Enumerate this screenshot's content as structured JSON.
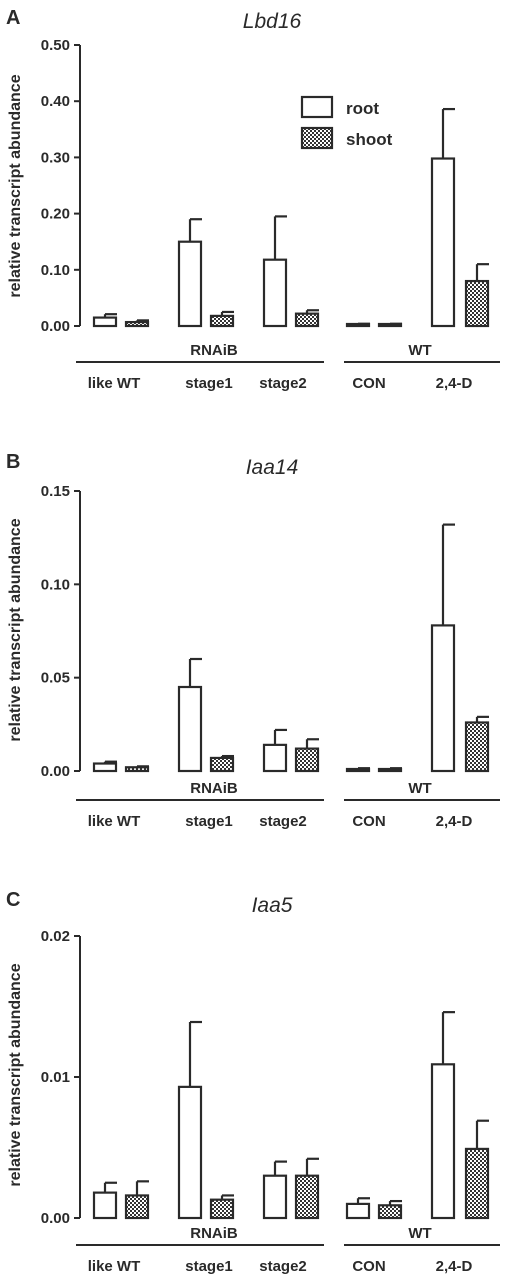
{
  "colors": {
    "root_fill": "#ffffff",
    "shoot_fill": "checkered",
    "ink": "#2a2a2a"
  },
  "chart_data": [
    {
      "panel_label": "A",
      "type": "bar",
      "title": "Lbd16",
      "ylabel": "relative transcript abundance",
      "ylim": [
        0,
        0.5
      ],
      "yticks": [
        "0.00",
        "0.10",
        "0.20",
        "0.30",
        "0.40",
        "0.50"
      ],
      "categories": [
        "like WT",
        "stage1",
        "stage2",
        "CON",
        "2,4-D"
      ],
      "groups": [
        {
          "label": "RNAiB",
          "categories": [
            0,
            1,
            2
          ]
        },
        {
          "label": "WT",
          "categories": [
            3,
            4
          ]
        }
      ],
      "legend": {
        "position": "top-right"
      },
      "series": [
        {
          "name": "root",
          "values": [
            0.015,
            0.15,
            0.118,
            0.003,
            0.298
          ],
          "errors": [
            0.006,
            0.04,
            0.077,
            0.001,
            0.088
          ]
        },
        {
          "name": "shoot",
          "values": [
            0.007,
            0.018,
            0.022,
            0.003,
            0.08
          ],
          "errors": [
            0.003,
            0.007,
            0.006,
            0.001,
            0.03
          ]
        }
      ]
    },
    {
      "panel_label": "B",
      "type": "bar",
      "title": "Iaa14",
      "ylabel": "relative transcript abundance",
      "ylim": [
        0,
        0.15
      ],
      "yticks": [
        "0.00",
        "0.05",
        "0.10",
        "0.15"
      ],
      "categories": [
        "like WT",
        "stage1",
        "stage2",
        "CON",
        "2,4-D"
      ],
      "groups": [
        {
          "label": "RNAiB",
          "categories": [
            0,
            1,
            2
          ]
        },
        {
          "label": "WT",
          "categories": [
            3,
            4
          ]
        }
      ],
      "series": [
        {
          "name": "root",
          "values": [
            0.004,
            0.045,
            0.014,
            0.001,
            0.078
          ],
          "errors": [
            0.001,
            0.015,
            0.008,
            0.0005,
            0.054
          ]
        },
        {
          "name": "shoot",
          "values": [
            0.002,
            0.007,
            0.012,
            0.001,
            0.026
          ],
          "errors": [
            0.0005,
            0.001,
            0.005,
            0.0005,
            0.003
          ]
        }
      ]
    },
    {
      "panel_label": "C",
      "type": "bar",
      "title": "Iaa5",
      "ylabel": "relative transcript abundance",
      "ylim": [
        0,
        0.02
      ],
      "yticks": [
        "0.00",
        "0.01",
        "0.02"
      ],
      "categories": [
        "like WT",
        "stage1",
        "stage2",
        "CON",
        "2,4-D"
      ],
      "groups": [
        {
          "label": "RNAiB",
          "categories": [
            0,
            1,
            2
          ]
        },
        {
          "label": "WT",
          "categories": [
            3,
            4
          ]
        }
      ],
      "series": [
        {
          "name": "root",
          "values": [
            0.0018,
            0.0093,
            0.003,
            0.001,
            0.0109
          ],
          "errors": [
            0.0007,
            0.0046,
            0.001,
            0.0004,
            0.0037
          ]
        },
        {
          "name": "shoot",
          "values": [
            0.0016,
            0.0013,
            0.003,
            0.0009,
            0.0049
          ],
          "errors": [
            0.001,
            0.0003,
            0.0012,
            0.0003,
            0.002
          ]
        }
      ]
    }
  ]
}
